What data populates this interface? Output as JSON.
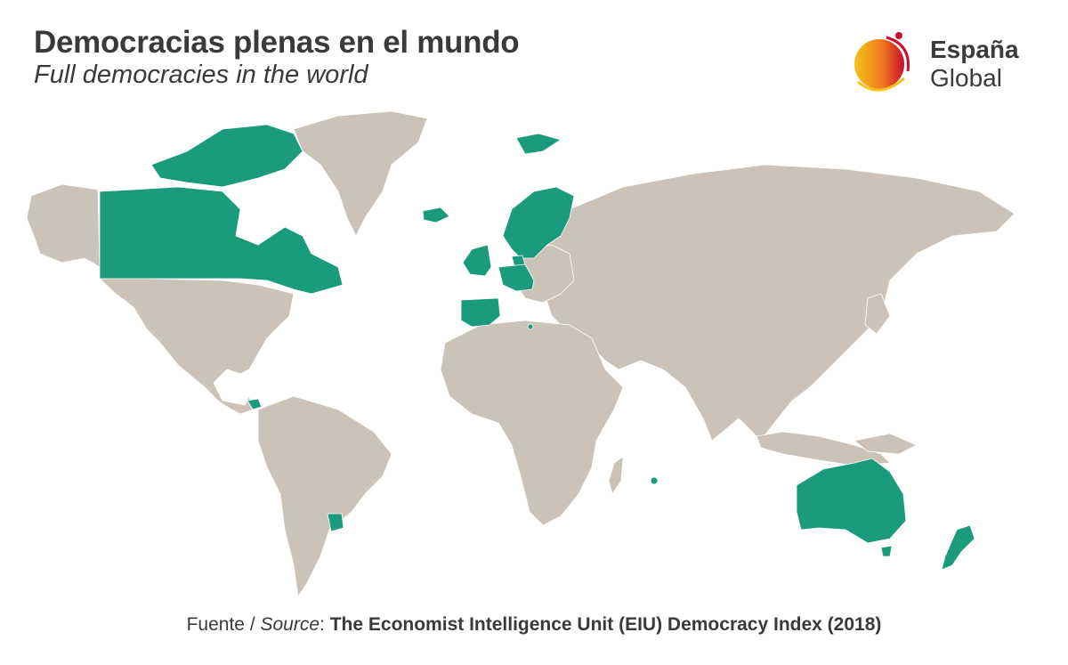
{
  "header": {
    "title": "Democracias plenas en el mundo",
    "subtitle": "Full democracies in the world"
  },
  "logo": {
    "line1": "España",
    "line2": "Global"
  },
  "colors": {
    "full_democracy": "#1a9b7c",
    "other_countries": "#cbc3b8",
    "background": "#ffffff"
  },
  "source": {
    "prefix": "Fuente / ",
    "label": "Source",
    "separator": ": ",
    "name": "The Economist Intelligence Unit (EIU) Democracy Index (2018)"
  }
}
